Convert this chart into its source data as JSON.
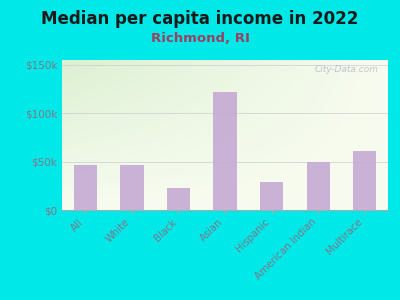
{
  "title": "Median per capita income in 2022",
  "subtitle": "Richmond, RI",
  "categories": [
    "All",
    "White",
    "Black",
    "Asian",
    "Hispanic",
    "American Indian",
    "Multirace"
  ],
  "values": [
    46000,
    46000,
    23000,
    122000,
    29000,
    50000,
    61000
  ],
  "bar_color": "#c4a8d4",
  "title_fontsize": 12,
  "subtitle_fontsize": 9.5,
  "title_color": "#1a1a1a",
  "subtitle_color": "#9b4060",
  "tick_color": "#7a7a8a",
  "bg_outer": "#00e8e8",
  "yticks": [
    0,
    50000,
    100000,
    150000
  ],
  "ytick_labels": [
    "$0",
    "$50k",
    "$100k",
    "$150k"
  ],
  "ylim_max": 155000,
  "watermark": "City-Data.com",
  "grad_topleft": [
    220,
    240,
    210
  ],
  "grad_bottomright": [
    248,
    252,
    240
  ]
}
